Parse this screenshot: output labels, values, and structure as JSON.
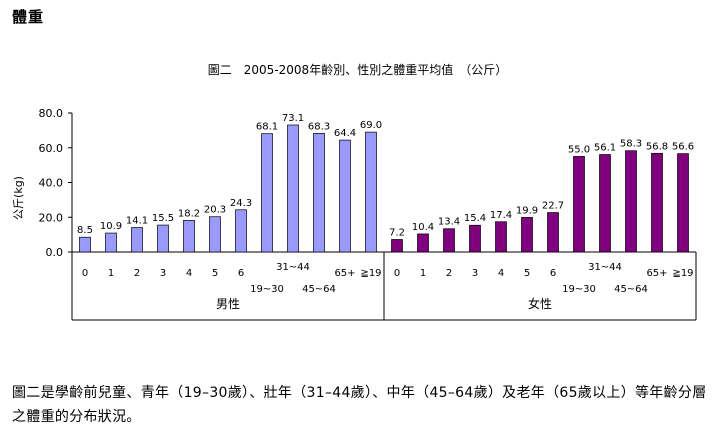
{
  "page": {
    "heading": "體重",
    "caption": "圖二是學齡前兒童、青年（19–30歲）、壯年（31–44歲）、中年（45–64歲）及老年（65歲以上）等年齡分層之體重的分布狀況。"
  },
  "chart_data": {
    "type": "bar",
    "title": "圖二　2005-2008年齡別、性別之體重平均值　（公斤）",
    "ylabel": "公斤(kg)",
    "ylim": [
      0,
      80
    ],
    "yticks": [
      "0.0",
      "20.0",
      "40.0",
      "60.0",
      "80.0"
    ],
    "grid": false,
    "categories": [
      "0",
      "1",
      "2",
      "3",
      "4",
      "5",
      "6",
      "19~30",
      "31~44",
      "45~64",
      "65+",
      "≧19"
    ],
    "groups": [
      {
        "name": "男性",
        "color": "#9999ff",
        "values": [
          8.5,
          10.9,
          14.1,
          15.5,
          18.2,
          20.3,
          24.3,
          68.1,
          73.1,
          68.3,
          64.4,
          69.0
        ]
      },
      {
        "name": "女性",
        "color": "#800080",
        "values": [
          7.2,
          10.4,
          13.4,
          15.4,
          17.4,
          19.9,
          22.7,
          55.0,
          56.1,
          58.3,
          56.8,
          56.6
        ]
      }
    ]
  }
}
